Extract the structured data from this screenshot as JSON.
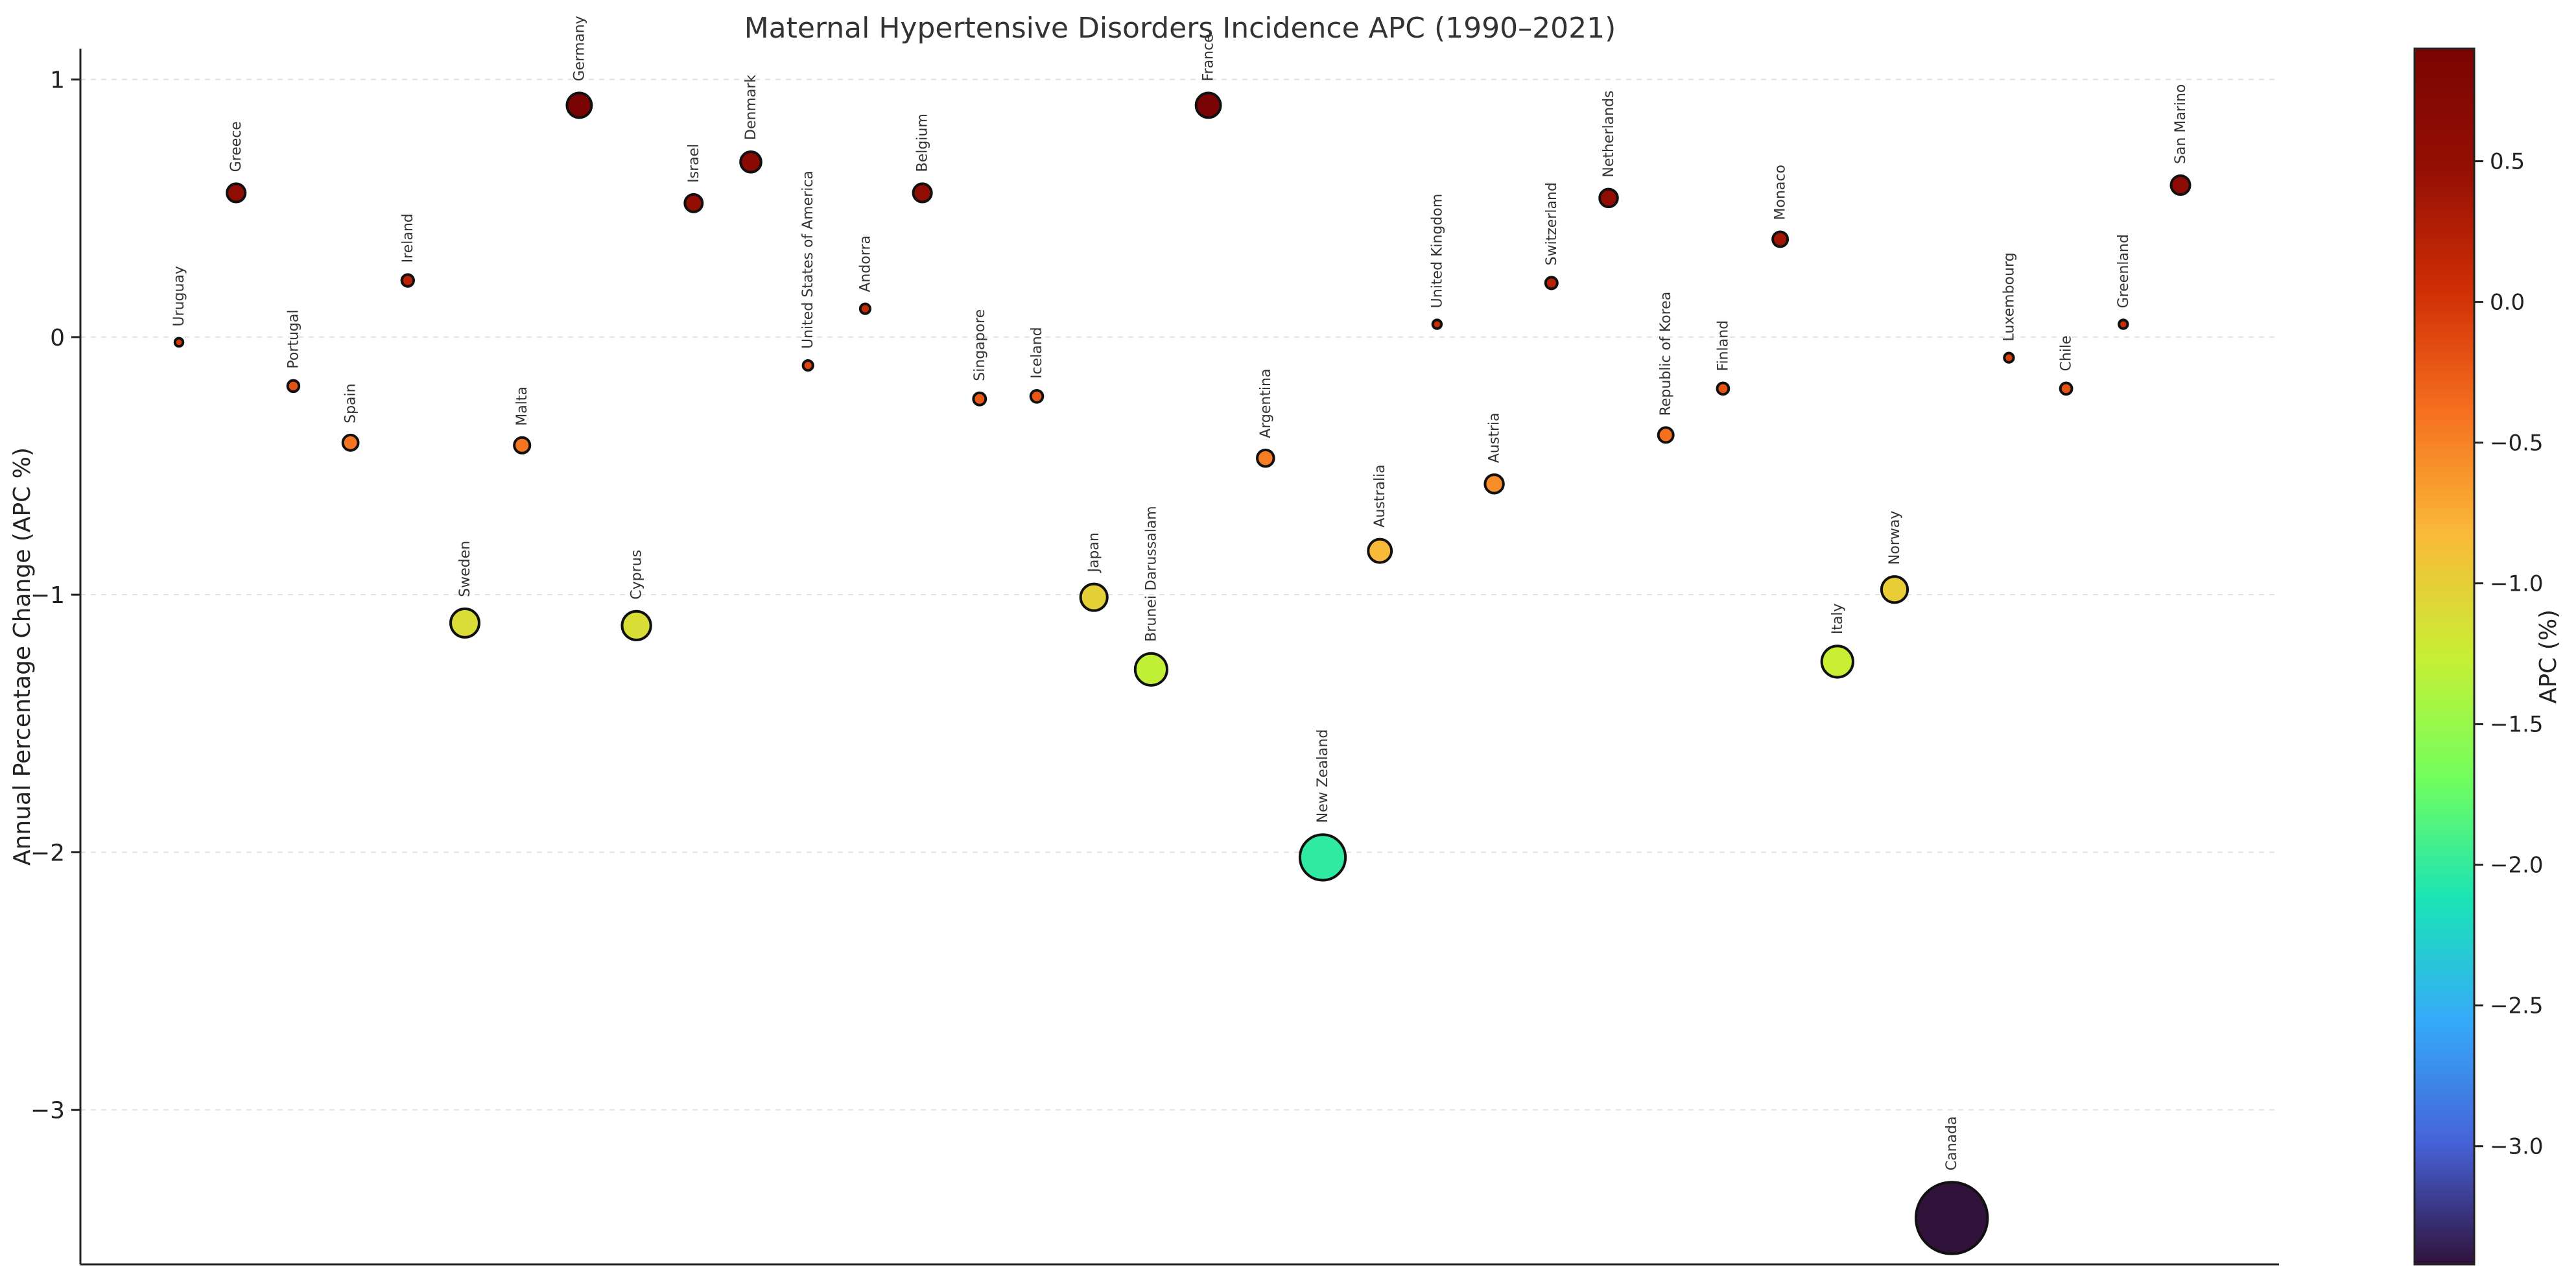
{
  "chart_data": {
    "type": "scatter",
    "title": "Maternal Hypertensive Disorders Incidence APC (1990–2021)",
    "ylabel": "Annual Percentage Change (APC %)",
    "xlabel": "",
    "ylim": [
      -3.6,
      1.12
    ],
    "yticks": [
      {
        "value": 1,
        "label": "1"
      },
      {
        "value": 0,
        "label": "0"
      },
      {
        "value": -1,
        "label": "−1"
      },
      {
        "value": -2,
        "label": "−2"
      },
      {
        "value": -3,
        "label": "−3"
      }
    ],
    "grid": true,
    "colorbar": {
      "label": "APC (%)",
      "range": [
        -3.42,
        0.9
      ],
      "ticks": [
        {
          "value": 0.5,
          "label": "0.5"
        },
        {
          "value": 0.0,
          "label": "0.0"
        },
        {
          "value": -0.5,
          "label": "−0.5"
        },
        {
          "value": -1.0,
          "label": "−1.0"
        },
        {
          "value": -1.5,
          "label": "−1.5"
        },
        {
          "value": -2.0,
          "label": "−2.0"
        },
        {
          "value": -2.5,
          "label": "−2.5"
        },
        {
          "value": -3.0,
          "label": "−3.0"
        }
      ]
    },
    "points": [
      {
        "name": "Uruguay",
        "value": -0.02
      },
      {
        "name": "Greece",
        "value": 0.56
      },
      {
        "name": "Portugal",
        "value": -0.19
      },
      {
        "name": "Spain",
        "value": -0.41
      },
      {
        "name": "Ireland",
        "value": 0.22
      },
      {
        "name": "Sweden",
        "value": -1.11
      },
      {
        "name": "Malta",
        "value": -0.42
      },
      {
        "name": "Germany",
        "value": 0.9
      },
      {
        "name": "Cyprus",
        "value": -1.12
      },
      {
        "name": "Israel",
        "value": 0.52
      },
      {
        "name": "Denmark",
        "value": 0.68
      },
      {
        "name": "United States of America",
        "value": -0.11
      },
      {
        "name": "Andorra",
        "value": 0.11
      },
      {
        "name": "Belgium",
        "value": 0.56
      },
      {
        "name": "Singapore",
        "value": -0.24
      },
      {
        "name": "Iceland",
        "value": -0.23
      },
      {
        "name": "Japan",
        "value": -1.01
      },
      {
        "name": "Brunei Darussalam",
        "value": -1.29
      },
      {
        "name": "France",
        "value": 0.9
      },
      {
        "name": "Argentina",
        "value": -0.47
      },
      {
        "name": "New Zealand",
        "value": -2.02
      },
      {
        "name": "Australia",
        "value": -0.83
      },
      {
        "name": "United Kingdom",
        "value": 0.05
      },
      {
        "name": "Austria",
        "value": -0.57
      },
      {
        "name": "Switzerland",
        "value": 0.21
      },
      {
        "name": "Netherlands",
        "value": 0.54
      },
      {
        "name": "Republic of Korea",
        "value": -0.38
      },
      {
        "name": "Finland",
        "value": -0.2
      },
      {
        "name": "Monaco",
        "value": 0.38
      },
      {
        "name": "Italy",
        "value": -1.26
      },
      {
        "name": "Norway",
        "value": -0.98
      },
      {
        "name": "Canada",
        "value": -3.42
      },
      {
        "name": "Luxembourg",
        "value": -0.08
      },
      {
        "name": "Chile",
        "value": -0.2
      },
      {
        "name": "Greenland",
        "value": 0.05
      },
      {
        "name": "San Marino",
        "value": 0.59
      }
    ]
  }
}
